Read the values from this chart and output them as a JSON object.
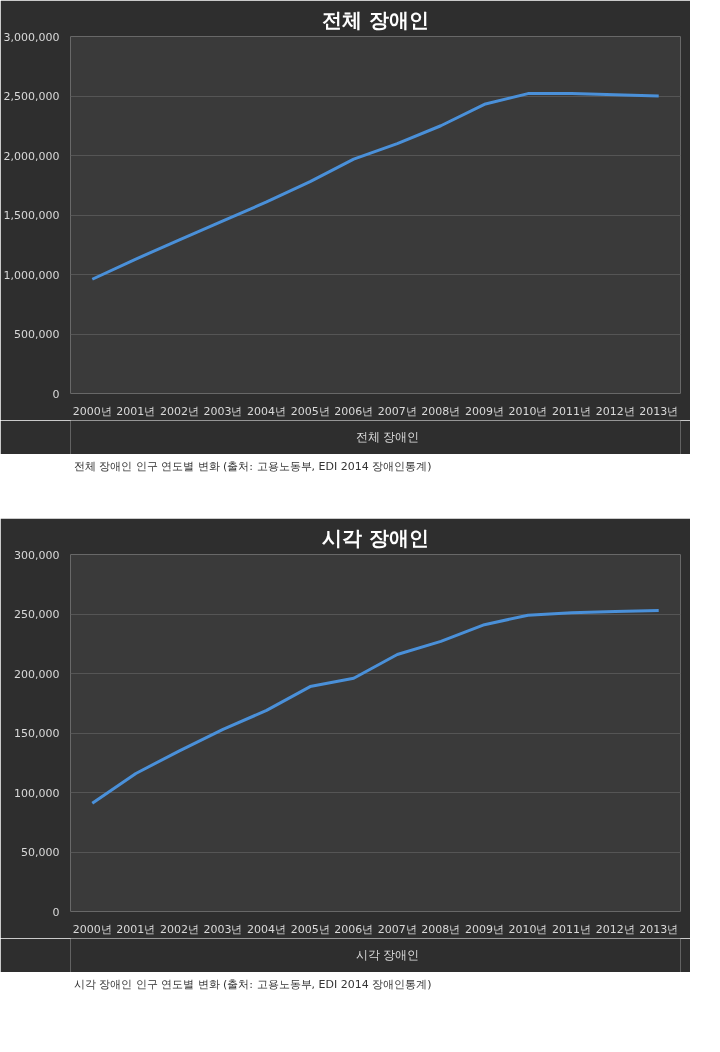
{
  "chart_data": [
    {
      "type": "line",
      "title": "전체 장애인",
      "categories": [
        "2000년",
        "2001년",
        "2002년",
        "2003년",
        "2004년",
        "2005년",
        "2006년",
        "2007년",
        "2008년",
        "2009년",
        "2010년",
        "2011년",
        "2012년",
        "2013년"
      ],
      "series": [
        {
          "name": "전체 장애인",
          "color": "#4a90d9",
          "values": [
            960000,
            1130000,
            1290000,
            1450000,
            1610000,
            1780000,
            1970000,
            2100000,
            2250000,
            2430000,
            2520000,
            2520000,
            2510000,
            2500000
          ]
        }
      ],
      "ylim": [
        0,
        3000000
      ],
      "yticks": [
        {
          "value": 0,
          "label": "0"
        },
        {
          "value": 500000,
          "label": "500,000"
        },
        {
          "value": 1000000,
          "label": "1,000,000"
        },
        {
          "value": 1500000,
          "label": "1,500,000"
        },
        {
          "value": 2000000,
          "label": "2,000,000"
        },
        {
          "value": 2500000,
          "label": "2,500,000"
        },
        {
          "value": 3000000,
          "label": "3,000,000"
        }
      ],
      "grid": "y",
      "legend": "bottom",
      "marker": "none",
      "line_style": "solid",
      "annotations": [
        "전체 장애인 인구 연도별 변화 (출처: 고용노동부, EDI 2014 장애인통계)"
      ]
    },
    {
      "type": "line",
      "title": "시각 장애인",
      "categories": [
        "2000년",
        "2001년",
        "2002년",
        "2003년",
        "2004년",
        "2005년",
        "2006년",
        "2007년",
        "2008년",
        "2009년",
        "2010년",
        "2011년",
        "2012년",
        "2013년"
      ],
      "series": [
        {
          "name": "시각 장애인",
          "color": "#4a90d9",
          "values": [
            91000,
            116000,
            135000,
            153000,
            169000,
            189000,
            196000,
            216000,
            227000,
            241000,
            249000,
            251000,
            252000,
            253000
          ]
        }
      ],
      "ylim": [
        0,
        300000
      ],
      "yticks": [
        {
          "value": 0,
          "label": "0"
        },
        {
          "value": 50000,
          "label": "50,000"
        },
        {
          "value": 100000,
          "label": "100,000"
        },
        {
          "value": 150000,
          "label": "150,000"
        },
        {
          "value": 200000,
          "label": "200,000"
        },
        {
          "value": 250000,
          "label": "250,000"
        },
        {
          "value": 300000,
          "label": "300,000"
        }
      ],
      "grid": "y",
      "legend": "bottom",
      "marker": "none",
      "line_style": "solid",
      "annotations": [
        "시각 장애인 인구 연도별 변화 (출처: 고용노동부, EDI 2014 장애인통계)"
      ]
    }
  ]
}
